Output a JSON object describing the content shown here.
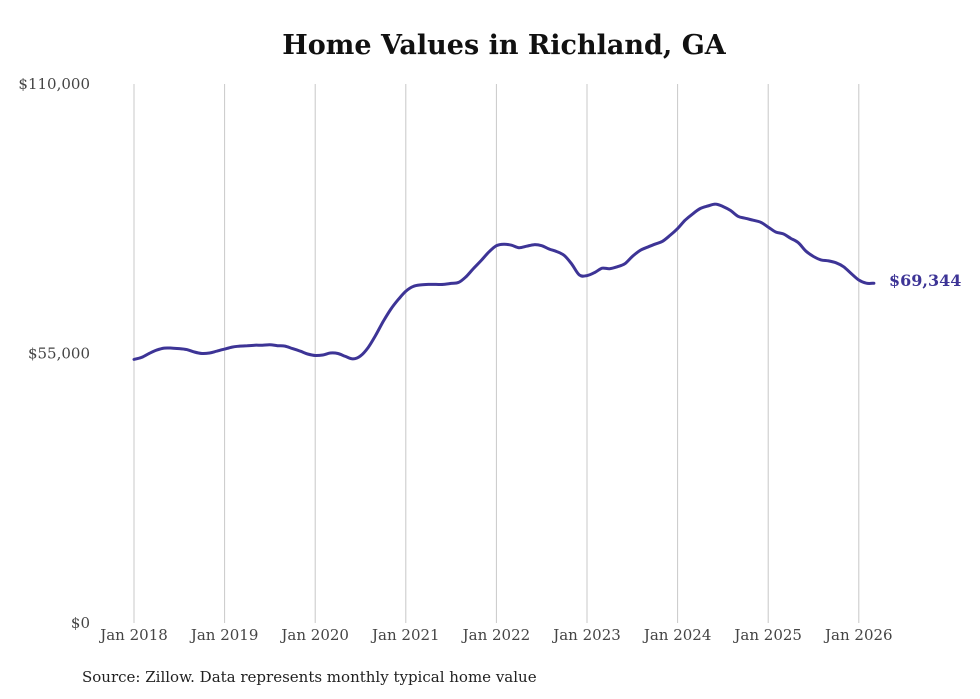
{
  "chart_data": {
    "type": "line",
    "title": "Home Values in Richland, GA",
    "xlabel": "",
    "ylabel": "",
    "y_ticks": [
      "$0",
      "$55,000",
      "$110,000"
    ],
    "ylim": [
      0,
      110000
    ],
    "x_ticks": [
      "Jan 2018",
      "Jan 2019",
      "Jan 2020",
      "Jan 2021",
      "Jan 2022",
      "Jan 2023",
      "Jan 2024",
      "Jan 2025",
      "Jan 2026"
    ],
    "grid": "vertical",
    "end_label": "$69,344",
    "line_color": "#3d3496",
    "series": [
      {
        "x": [
          "2018-01",
          "2018-02",
          "2018-03",
          "2018-04",
          "2018-05",
          "2018-06",
          "2018-07",
          "2018-08",
          "2018-09",
          "2018-10",
          "2018-11",
          "2018-12",
          "2019-01",
          "2019-02",
          "2019-03",
          "2019-04",
          "2019-05",
          "2019-06",
          "2019-07",
          "2019-08",
          "2019-09",
          "2019-10",
          "2019-11",
          "2019-12",
          "2020-01",
          "2020-02",
          "2020-03",
          "2020-04",
          "2020-05",
          "2020-06",
          "2020-07",
          "2020-08",
          "2020-09",
          "2020-10",
          "2020-11",
          "2020-12",
          "2021-01",
          "2021-02",
          "2021-03",
          "2021-04",
          "2021-05",
          "2021-06",
          "2021-07",
          "2021-08",
          "2021-09",
          "2021-10",
          "2021-11",
          "2021-12",
          "2022-01",
          "2022-02",
          "2022-03",
          "2022-04",
          "2022-05",
          "2022-06",
          "2022-07",
          "2022-08",
          "2022-09",
          "2022-10",
          "2022-11",
          "2022-12",
          "2023-01",
          "2023-02",
          "2023-03",
          "2023-04",
          "2023-05",
          "2023-06",
          "2023-07",
          "2023-08",
          "2023-09",
          "2023-10",
          "2023-11",
          "2023-12",
          "2024-01",
          "2024-02",
          "2024-03",
          "2024-04",
          "2024-05",
          "2024-06",
          "2024-07",
          "2024-08",
          "2024-09",
          "2024-10",
          "2024-11",
          "2024-12",
          "2025-01",
          "2025-02",
          "2025-03",
          "2025-04",
          "2025-05",
          "2025-06",
          "2025-07",
          "2025-08",
          "2025-09",
          "2025-10",
          "2025-11",
          "2025-12",
          "2026-01",
          "2026-02",
          "2026-03"
        ],
        "values": [
          53800,
          54200,
          55000,
          55700,
          56100,
          56100,
          56000,
          55800,
          55300,
          55000,
          55100,
          55500,
          55900,
          56300,
          56500,
          56600,
          56700,
          56700,
          56800,
          56600,
          56500,
          56000,
          55500,
          54900,
          54600,
          54700,
          55100,
          55000,
          54400,
          53900,
          54500,
          56200,
          58700,
          61500,
          64000,
          66000,
          67700,
          68700,
          69000,
          69100,
          69100,
          69100,
          69300,
          69500,
          70700,
          72400,
          74000,
          75700,
          77000,
          77300,
          77100,
          76600,
          76900,
          77200,
          77000,
          76300,
          75800,
          75000,
          73200,
          71000,
          70900,
          71500,
          72400,
          72300,
          72700,
          73300,
          74800,
          76000,
          76700,
          77300,
          77900,
          79100,
          80500,
          82200,
          83500,
          84600,
          85100,
          85500,
          85000,
          84200,
          83000,
          82600,
          82200,
          81800,
          80800,
          79800,
          79400,
          78500,
          77600,
          75900,
          74800,
          74100,
          73900,
          73500,
          72700,
          71300,
          70000,
          69344,
          69344
        ]
      }
    ]
  },
  "source_note": "Source: Zillow. Data represents monthly typical home value"
}
